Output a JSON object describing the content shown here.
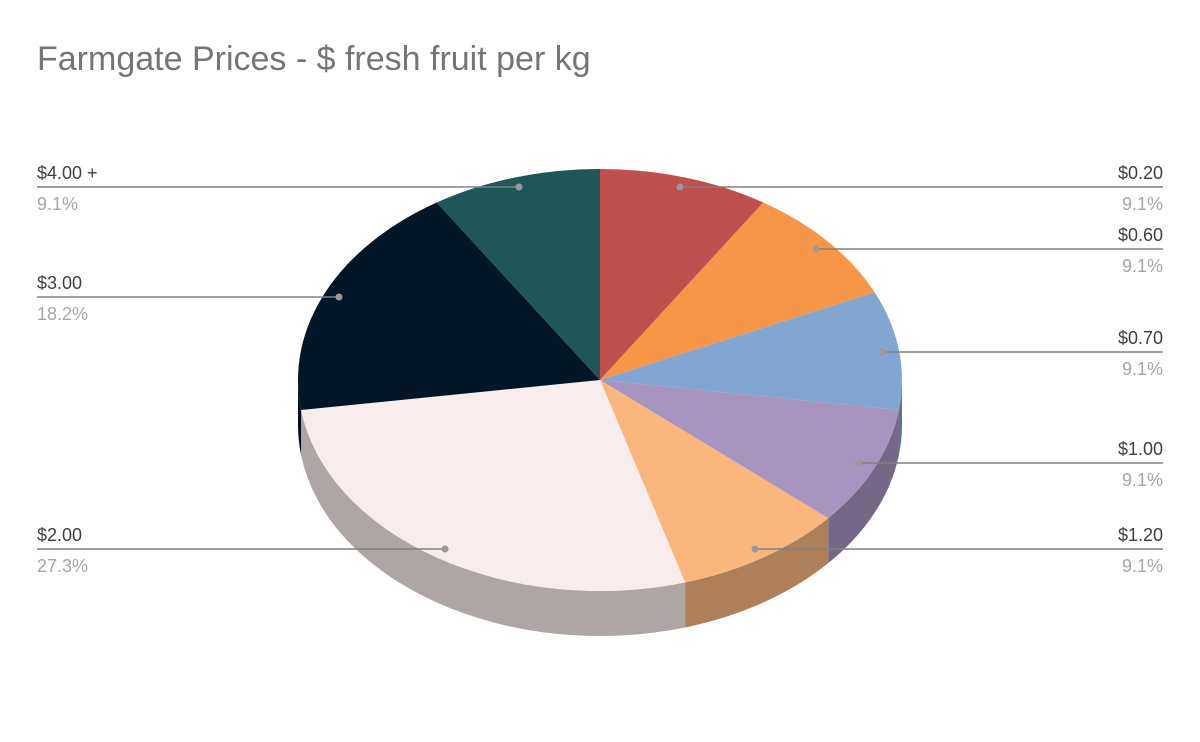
{
  "chart_data": {
    "type": "pie3d",
    "title": "Farmgate Prices - $ fresh fruit per kg",
    "categories": [
      "$0.20",
      "$0.60",
      "$0.70",
      "$1.00",
      "$1.20",
      "$2.00",
      "$3.00",
      "$4.00 +"
    ],
    "values": [
      9.1,
      9.1,
      9.1,
      9.1,
      9.1,
      27.3,
      18.2,
      9.1
    ],
    "value_labels": [
      "9.1%",
      "9.1%",
      "9.1%",
      "9.1%",
      "9.1%",
      "27.3%",
      "18.2%",
      "9.1%"
    ],
    "colors": [
      "#c0504d",
      "#f79646",
      "#81a6d1",
      "#a794bf",
      "#f9b67d",
      "#f8ecec",
      "#031626",
      "#1f5759"
    ]
  }
}
